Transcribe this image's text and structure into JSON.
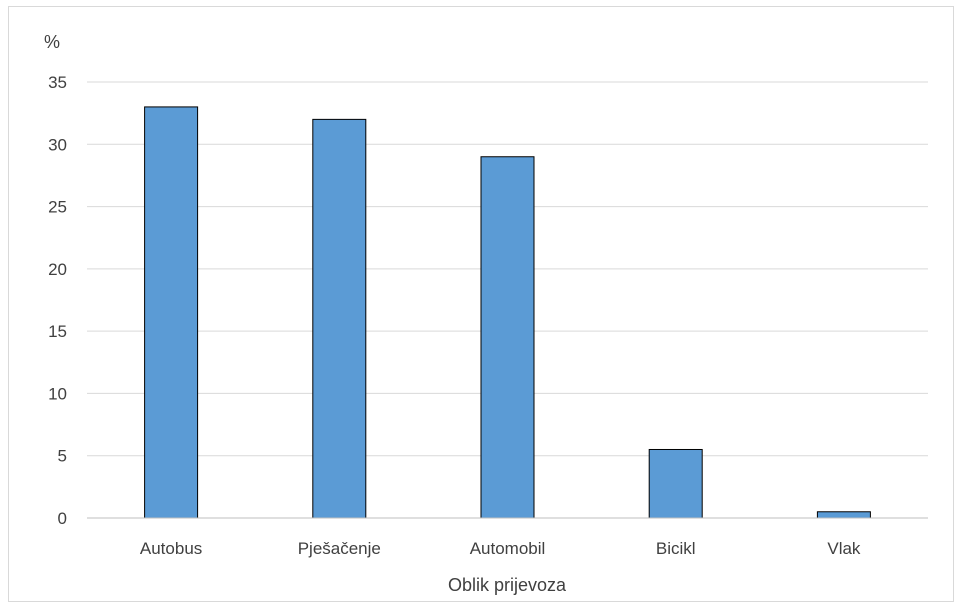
{
  "chart_data": {
    "type": "bar",
    "ylabel": "%",
    "xlabel": "Oblik prijevoza",
    "categories": [
      "Autobus",
      "Pješačenje",
      "Automobil",
      "Bicikl",
      "Vlak"
    ],
    "values": [
      33,
      32,
      29,
      5.5,
      0.5
    ],
    "ylim": [
      0,
      35
    ],
    "yticks": [
      "0",
      "5",
      "10",
      "15",
      "20",
      "25",
      "30",
      "35"
    ],
    "grid": true,
    "bar_color": "#5b9bd5",
    "bar_edge_color": "#000000",
    "gridline_color": "#d9d9d9"
  }
}
